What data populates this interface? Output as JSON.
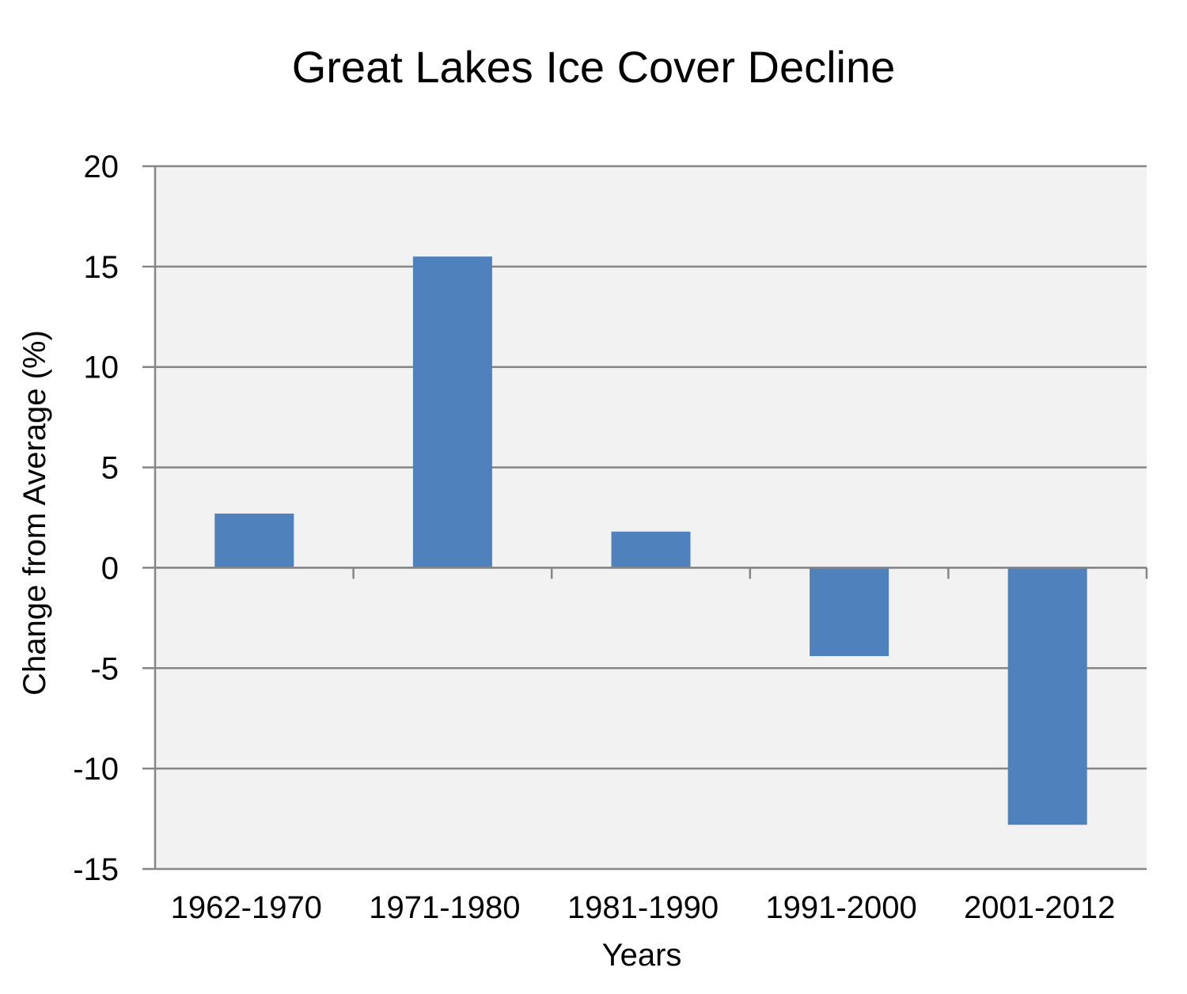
{
  "chart_data": {
    "type": "bar",
    "title": "Great Lakes Ice Cover Decline",
    "xlabel": "Years",
    "ylabel": "Change from Average (%)",
    "categories": [
      "1962-1970",
      "1971-1980",
      "1981-1990",
      "1991-2000",
      "2001-2012"
    ],
    "values": [
      2.7,
      15.5,
      1.8,
      -4.4,
      -12.8
    ],
    "ylim": [
      -15,
      20
    ],
    "yticks": [
      20,
      15,
      10,
      5,
      0,
      -5,
      -10,
      -15
    ],
    "ytick_labels": [
      "20",
      "15",
      "10",
      "5",
      "0",
      "-5",
      "-10",
      "-15"
    ],
    "grid": true,
    "legend": "none",
    "colors": {
      "bar": "#4f81bd",
      "plot_background": "#f2f2f2",
      "gridline": "#868686",
      "text": "#000000"
    }
  }
}
